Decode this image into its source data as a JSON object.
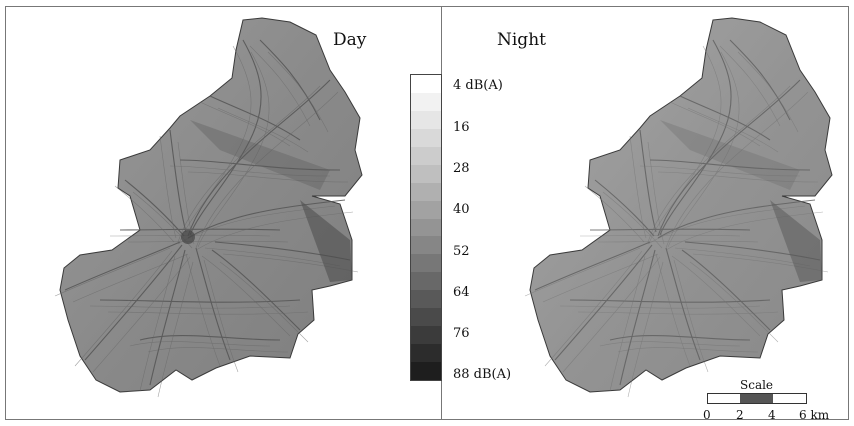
{
  "panels": {
    "left_title": "Day",
    "right_title": "Night"
  },
  "legend": {
    "labels": [
      "4 dB(A)",
      "16",
      "28",
      "40",
      "52",
      "64",
      "76",
      "88 dB(A)"
    ],
    "swatch_colors": [
      "#ffffff",
      "#f2f2f2",
      "#e6e6e6",
      "#d9d9d9",
      "#cccccc",
      "#bfbfbf",
      "#b0b0b0",
      "#a2a2a2",
      "#949494",
      "#868686",
      "#777777",
      "#686868",
      "#595959",
      "#4a4a4a",
      "#3b3b3b",
      "#2c2c2c",
      "#1e1e1e"
    ]
  },
  "scale": {
    "title": "Scale",
    "ticks": [
      "0",
      "2",
      "4",
      "6 km"
    ]
  },
  "map_colors": {
    "fill": "#8c8c8c",
    "road": "#555555",
    "border": "#3a3a3a"
  }
}
